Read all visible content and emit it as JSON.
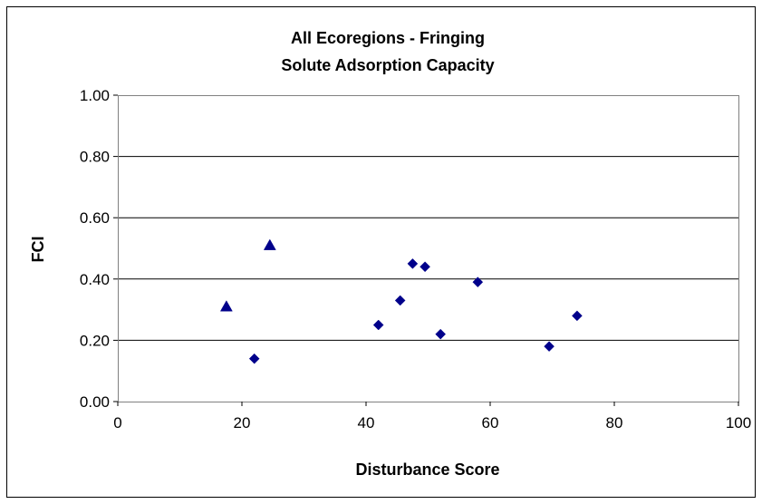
{
  "chart_data": {
    "type": "scatter",
    "title_line1": "All Ecoregions - Fringing",
    "title_line2": "Solute Adsorption Capacity",
    "xlabel": "Disturbance Score",
    "ylabel": "FCI",
    "xlim": [
      0,
      100
    ],
    "ylim": [
      0,
      1
    ],
    "x_ticks": [
      "0",
      "20",
      "40",
      "60",
      "80",
      "100"
    ],
    "y_ticks": [
      "0.00",
      "0.20",
      "0.40",
      "0.60",
      "0.80",
      "1.00"
    ],
    "grid": "horizontal",
    "marker_color": "#00008B",
    "series": [
      {
        "marker": "diamond",
        "points": [
          {
            "x": 22,
            "y": 0.14
          },
          {
            "x": 42,
            "y": 0.25
          },
          {
            "x": 45.5,
            "y": 0.33
          },
          {
            "x": 47.5,
            "y": 0.45
          },
          {
            "x": 49.5,
            "y": 0.44
          },
          {
            "x": 52,
            "y": 0.22
          },
          {
            "x": 58,
            "y": 0.39
          },
          {
            "x": 69.5,
            "y": 0.18
          },
          {
            "x": 74,
            "y": 0.28
          }
        ]
      },
      {
        "marker": "triangle",
        "points": [
          {
            "x": 17.5,
            "y": 0.31
          },
          {
            "x": 24.5,
            "y": 0.51
          }
        ]
      }
    ]
  }
}
